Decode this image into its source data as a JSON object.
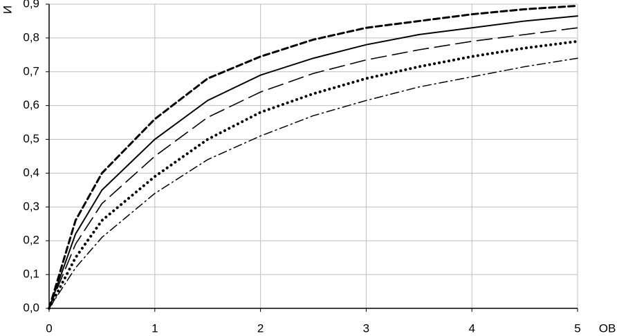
{
  "chart_data": {
    "type": "line",
    "y_label": "И",
    "x_label": "OB",
    "x": [
      0,
      0.25,
      0.5,
      1,
      1.5,
      2,
      2.5,
      3,
      3.5,
      4,
      4.5,
      5
    ],
    "series": [
      {
        "color": "#000000",
        "dash": "9 5",
        "width": 3,
        "values": [
          0,
          0.26,
          0.4,
          0.56,
          0.68,
          0.745,
          0.795,
          0.83,
          0.85,
          0.87,
          0.885,
          0.895
        ]
      },
      {
        "color": "#000000",
        "dash": "none",
        "width": 2,
        "values": [
          0,
          0.22,
          0.35,
          0.5,
          0.615,
          0.69,
          0.74,
          0.78,
          0.81,
          0.83,
          0.85,
          0.865
        ]
      },
      {
        "color": "#000000",
        "dash": "22 9",
        "width": 1.6,
        "values": [
          0,
          0.19,
          0.31,
          0.45,
          0.565,
          0.64,
          0.695,
          0.735,
          0.765,
          0.79,
          0.81,
          0.83
        ]
      },
      {
        "color": "#000000",
        "dash": "0.1 7",
        "width": 4,
        "values": [
          0,
          0.15,
          0.26,
          0.39,
          0.5,
          0.58,
          0.635,
          0.68,
          0.715,
          0.745,
          0.77,
          0.79
        ]
      },
      {
        "color": "#000000",
        "dash": "12 5 2 5",
        "width": 1.5,
        "values": [
          0,
          0.12,
          0.21,
          0.34,
          0.44,
          0.51,
          0.57,
          0.615,
          0.655,
          0.685,
          0.715,
          0.74
        ]
      }
    ],
    "xlim": [
      0,
      5
    ],
    "xticks": [
      0,
      1,
      2,
      3,
      4,
      5
    ],
    "ylim": [
      0,
      0.9
    ],
    "yticks": [
      {
        "value": 0,
        "label": "0,0"
      },
      {
        "value": 0.1,
        "label": "0,1"
      },
      {
        "value": 0.2,
        "label": "0,2"
      },
      {
        "value": 0.3,
        "label": "0,3"
      },
      {
        "value": 0.4,
        "label": "0,4"
      },
      {
        "value": 0.5,
        "label": "0,5"
      },
      {
        "value": 0.6,
        "label": "0,6"
      },
      {
        "value": 0.7,
        "label": "0,7"
      },
      {
        "value": 0.8,
        "label": "0,8"
      },
      {
        "value": 0.9,
        "label": "0,9"
      }
    ],
    "grid": true
  }
}
